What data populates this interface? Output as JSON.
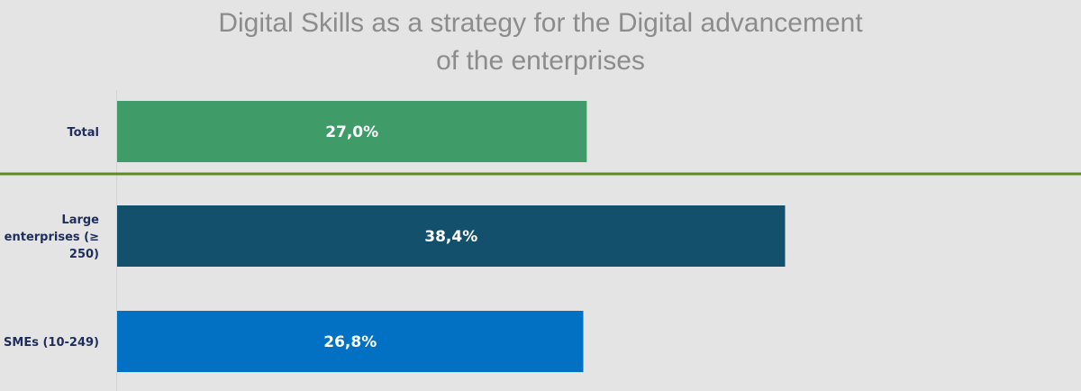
{
  "chart_data": {
    "type": "bar",
    "orientation": "horizontal",
    "title_lines": [
      "Digital Skills as a strategy for the Digital advancement",
      "of the enterprises"
    ],
    "categories": [
      {
        "lines": [
          "Total"
        ]
      },
      {
        "lines": [
          "Large",
          "enterprises (≥",
          "250)"
        ]
      },
      {
        "lines": [
          "SMEs (10-249)"
        ]
      }
    ],
    "values": [
      27.0,
      38.4,
      26.8
    ],
    "value_labels": [
      "27,0%",
      "38,4%",
      "26,8%"
    ],
    "unit": "%",
    "xlim": [
      0,
      50
    ],
    "colors": [
      "#3f9c69",
      "#12506b",
      "#0270c3"
    ],
    "separator_color": "#5f8a1e",
    "grid": false,
    "legend": "none"
  }
}
